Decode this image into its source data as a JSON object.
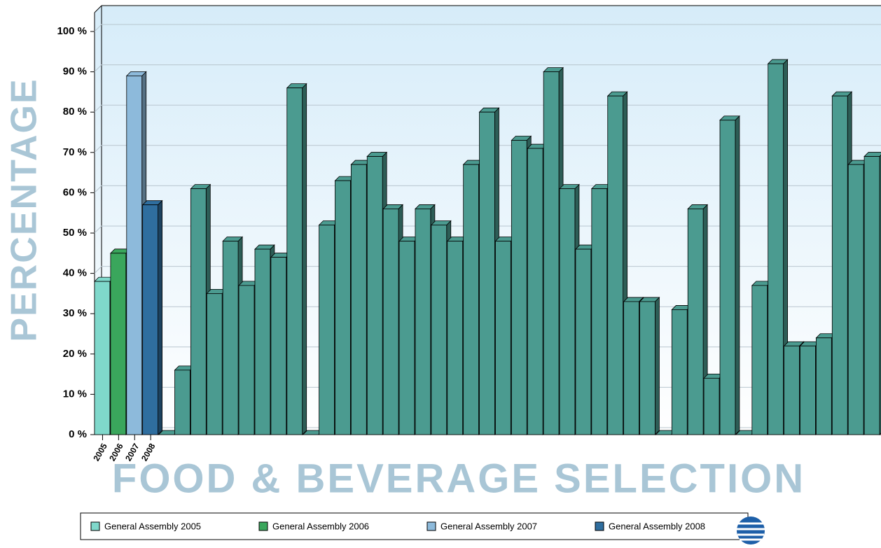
{
  "chart_data": {
    "type": "bar",
    "title": "FOOD & BEVERAGE SELECTION",
    "y_label": "PERCENTAGE",
    "categories": [
      "2005",
      "2006",
      "2007",
      "2008",
      null,
      null,
      null,
      null,
      null,
      null,
      null,
      null,
      null,
      null,
      null,
      null,
      null,
      null,
      null,
      null,
      null,
      null,
      null,
      null,
      null,
      null,
      null,
      null,
      null,
      null,
      null,
      null,
      null,
      null,
      null,
      null,
      null,
      null,
      null,
      null,
      null,
      null,
      null,
      null,
      null,
      null,
      null,
      null,
      null
    ],
    "values": [
      38,
      45,
      89,
      57,
      0,
      16,
      61,
      35,
      48,
      37,
      46,
      44,
      86,
      0,
      52,
      63,
      67,
      69,
      56,
      48,
      56,
      52,
      48,
      67,
      80,
      48,
      73,
      71,
      90,
      61,
      46,
      61,
      84,
      33,
      33,
      0,
      31,
      56,
      14,
      78,
      0,
      37,
      92,
      22,
      22,
      24,
      84,
      67,
      69
    ],
    "colors": [
      "#7fd8cb",
      "#3aa65c",
      "#8dbadb",
      "#2f6e9f",
      "#4b9b90",
      "#4b9b90",
      "#4b9b90",
      "#4b9b90",
      "#4b9b90",
      "#4b9b90",
      "#4b9b90",
      "#4b9b90",
      "#4b9b90",
      "#4b9b90",
      "#4b9b90",
      "#4b9b90",
      "#4b9b90",
      "#4b9b90",
      "#4b9b90",
      "#4b9b90",
      "#4b9b90",
      "#4b9b90",
      "#4b9b90",
      "#4b9b90",
      "#4b9b90",
      "#4b9b90",
      "#4b9b90",
      "#4b9b90",
      "#4b9b90",
      "#4b9b90",
      "#4b9b90",
      "#4b9b90",
      "#4b9b90",
      "#4b9b90",
      "#4b9b90",
      "#4b9b90",
      "#4b9b90",
      "#4b9b90",
      "#4b9b90",
      "#4b9b90",
      "#4b9b90",
      "#4b9b90",
      "#4b9b90",
      "#4b9b90",
      "#4b9b90",
      "#4b9b90",
      "#4b9b90",
      "#4b9b90",
      "#4b9b90"
    ],
    "legend": [
      {
        "name": "General Assembly 2005",
        "color": "#7fd8cb"
      },
      {
        "name": "General Assembly 2006",
        "color": "#3aa65c"
      },
      {
        "name": "General Assembly 2007",
        "color": "#8dbadb"
      },
      {
        "name": "General Assembly 2008",
        "color": "#2f6e9f"
      }
    ],
    "ylim": [
      0,
      100
    ],
    "yticks": [
      {
        "value": 0,
        "label": "0 %"
      },
      {
        "value": 10,
        "label": "10 %"
      },
      {
        "value": 20,
        "label": "20 %"
      },
      {
        "value": 30,
        "label": "30 %"
      },
      {
        "value": 40,
        "label": "40 %"
      },
      {
        "value": 50,
        "label": "50 %"
      },
      {
        "value": 60,
        "label": "60 %"
      },
      {
        "value": 70,
        "label": "70 %"
      },
      {
        "value": 80,
        "label": "80 %"
      },
      {
        "value": 90,
        "label": "90 %"
      },
      {
        "value": 100,
        "label": "100 %"
      }
    ],
    "grid": true
  }
}
